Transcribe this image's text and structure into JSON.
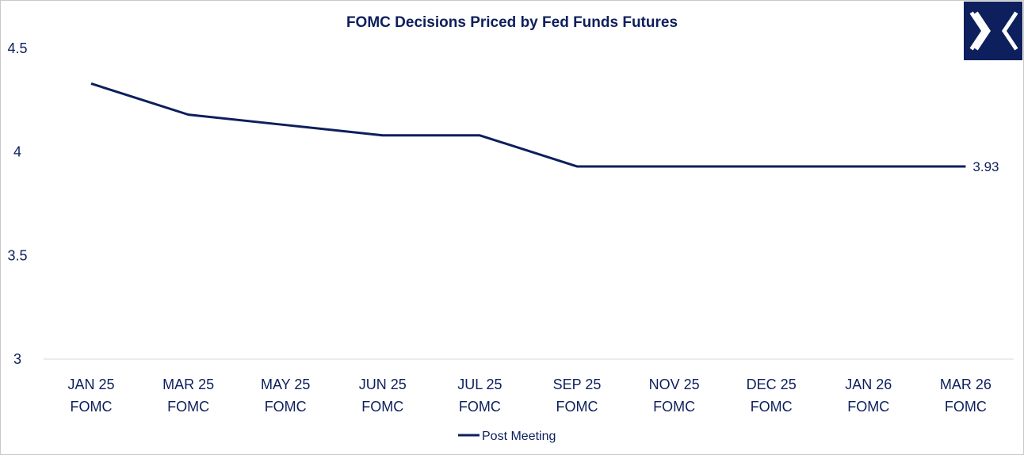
{
  "chart_data": {
    "type": "line",
    "title": "FOMC Decisions Priced by Fed Funds Futures",
    "xlabel": "",
    "ylabel": "",
    "categories": [
      [
        "JAN 25",
        "FOMC"
      ],
      [
        "MAR 25",
        "FOMC"
      ],
      [
        "MAY 25",
        "FOMC"
      ],
      [
        "JUN 25",
        "FOMC"
      ],
      [
        "JUL 25",
        "FOMC"
      ],
      [
        "SEP 25",
        "FOMC"
      ],
      [
        "NOV 25",
        "FOMC"
      ],
      [
        "DEC 25",
        "FOMC"
      ],
      [
        "JAN 26",
        "FOMC"
      ],
      [
        "MAR 26",
        "FOMC"
      ]
    ],
    "series": [
      {
        "name": "Post Meeting",
        "values": [
          4.33,
          4.18,
          4.13,
          4.08,
          4.08,
          3.93,
          3.93,
          3.93,
          3.93,
          3.93
        ]
      }
    ],
    "ylim": [
      3,
      4.5
    ],
    "yticks": [
      "3",
      "3.5",
      "4",
      "4.5"
    ],
    "grid": false,
    "legend_position": "bottom-center",
    "data_labels": [
      {
        "series": 0,
        "index": 9,
        "text": "3.93"
      }
    ],
    "colors": {
      "line": "#0d1f5c",
      "text": "#0d1f5c",
      "axis": "#d9d9d9",
      "logo_bg": "#0d1f5c",
      "logo_fg": "#ffffff"
    },
    "logo_icon": "x-logo-icon"
  }
}
